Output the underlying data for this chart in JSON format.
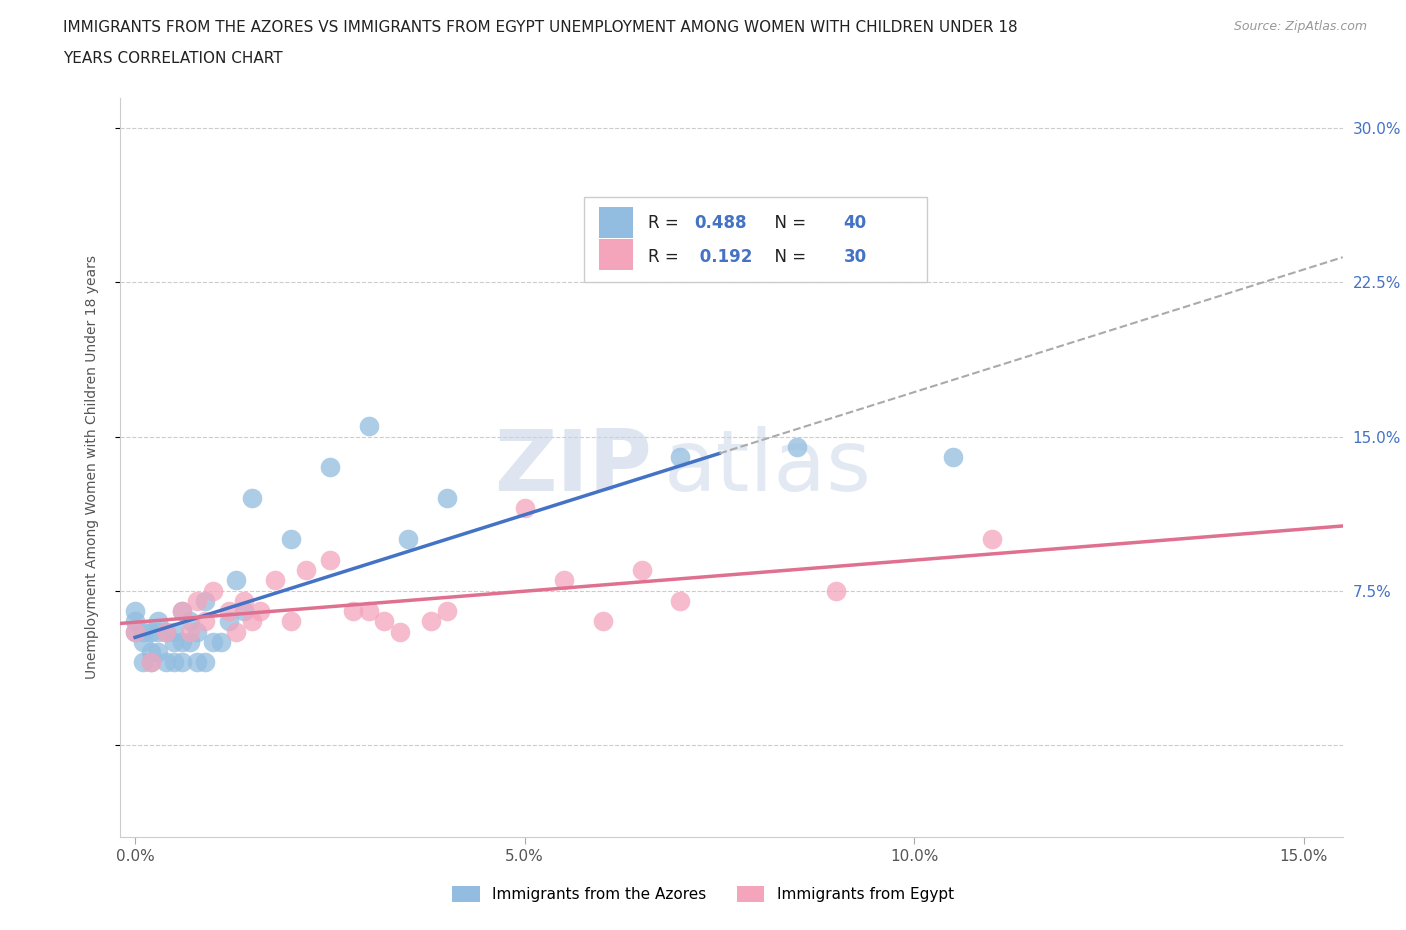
{
  "title_line1": "IMMIGRANTS FROM THE AZORES VS IMMIGRANTS FROM EGYPT UNEMPLOYMENT AMONG WOMEN WITH CHILDREN UNDER 18",
  "title_line2": "YEARS CORRELATION CHART",
  "source": "Source: ZipAtlas.com",
  "ylabel": "Unemployment Among Women with Children Under 18 years",
  "xlim": [
    -0.002,
    0.155
  ],
  "ylim": [
    -0.045,
    0.315
  ],
  "xticks": [
    0.0,
    0.05,
    0.1,
    0.15
  ],
  "xtick_labels": [
    "0.0%",
    "5.0%",
    "10.0%",
    "15.0%"
  ],
  "yticks": [
    0.0,
    0.075,
    0.15,
    0.225,
    0.3
  ],
  "ytick_labels": [
    "",
    "7.5%",
    "15.0%",
    "22.5%",
    "30.0%"
  ],
  "azores_color": "#92bde0",
  "egypt_color": "#f4a4bb",
  "azores_line_color": "#4472c4",
  "egypt_line_color": "#e07090",
  "R_azores": 0.488,
  "N_azores": 40,
  "R_egypt": 0.192,
  "N_egypt": 30,
  "azores_scatter_x": [
    0.0,
    0.0,
    0.0,
    0.001,
    0.001,
    0.001,
    0.002,
    0.002,
    0.002,
    0.003,
    0.003,
    0.003,
    0.004,
    0.004,
    0.005,
    0.005,
    0.005,
    0.006,
    0.006,
    0.006,
    0.007,
    0.007,
    0.008,
    0.008,
    0.009,
    0.009,
    0.01,
    0.011,
    0.012,
    0.013,
    0.014,
    0.015,
    0.02,
    0.025,
    0.03,
    0.035,
    0.04,
    0.07,
    0.085,
    0.105
  ],
  "azores_scatter_y": [
    0.055,
    0.06,
    0.065,
    0.04,
    0.05,
    0.055,
    0.04,
    0.045,
    0.055,
    0.045,
    0.055,
    0.06,
    0.04,
    0.055,
    0.04,
    0.05,
    0.055,
    0.04,
    0.05,
    0.065,
    0.05,
    0.06,
    0.04,
    0.055,
    0.04,
    0.07,
    0.05,
    0.05,
    0.06,
    0.08,
    0.065,
    0.12,
    0.1,
    0.135,
    0.155,
    0.1,
    0.12,
    0.14,
    0.145,
    0.14
  ],
  "egypt_scatter_x": [
    0.0,
    0.002,
    0.004,
    0.006,
    0.007,
    0.008,
    0.009,
    0.01,
    0.012,
    0.013,
    0.014,
    0.015,
    0.016,
    0.018,
    0.02,
    0.022,
    0.025,
    0.028,
    0.03,
    0.032,
    0.034,
    0.038,
    0.04,
    0.05,
    0.055,
    0.06,
    0.065,
    0.07,
    0.09,
    0.11
  ],
  "egypt_scatter_y": [
    0.055,
    0.04,
    0.055,
    0.065,
    0.055,
    0.07,
    0.06,
    0.075,
    0.065,
    0.055,
    0.07,
    0.06,
    0.065,
    0.08,
    0.06,
    0.085,
    0.09,
    0.065,
    0.065,
    0.06,
    0.055,
    0.06,
    0.065,
    0.115,
    0.08,
    0.06,
    0.085,
    0.07,
    0.075,
    0.1
  ],
  "background_color": "#ffffff",
  "grid_color": "#e0e0e0",
  "label_color_blue": "#4472c4",
  "legend_azores": "Immigrants from the Azores",
  "legend_egypt": "Immigrants from Egypt"
}
